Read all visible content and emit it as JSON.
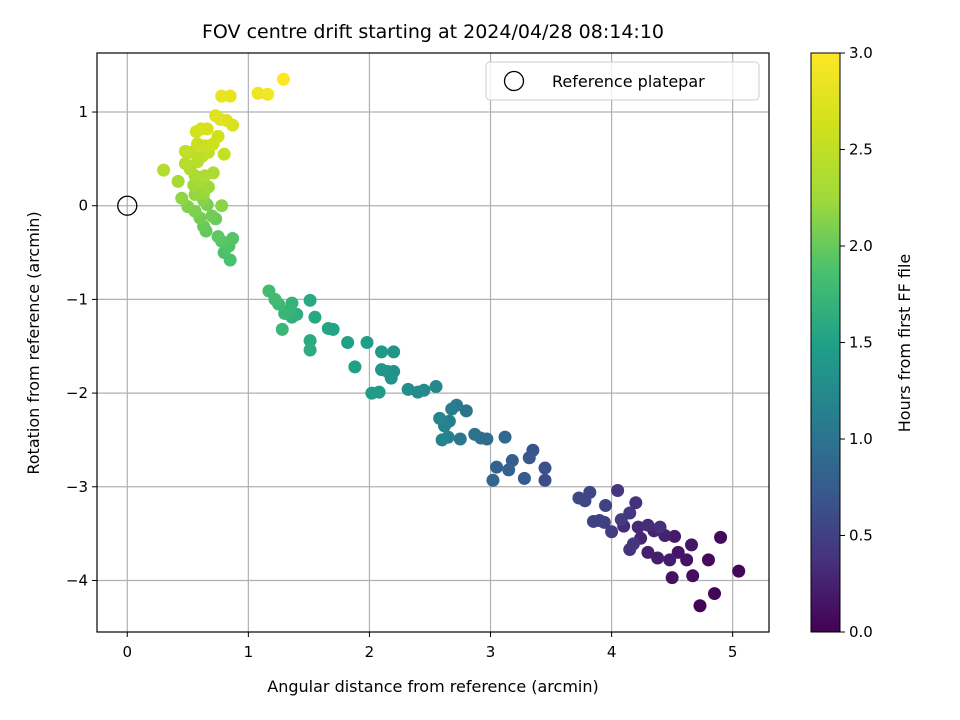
{
  "chart_data": {
    "type": "scatter",
    "title": "FOV centre drift starting at 2024/04/28 08:14:10",
    "xlabel": "Angular distance from reference (arcmin)",
    "ylabel": "Rotation from reference (arcmin)",
    "xlim": [
      -0.25,
      5.3
    ],
    "ylim": [
      -4.55,
      1.63
    ],
    "xticks": [
      0,
      1,
      2,
      3,
      4,
      5
    ],
    "yticks": [
      -4,
      -3,
      -2,
      -1,
      0,
      1
    ],
    "grid": true,
    "colormap": "viridis",
    "colorbar": {
      "label": "Hours from first FF file",
      "range": [
        0.0,
        3.0
      ],
      "ticks": [
        "0.0",
        "0.5",
        "1.0",
        "1.5",
        "2.0",
        "2.5",
        "3.0"
      ]
    },
    "legend": {
      "position": "top-right",
      "entries": [
        {
          "label": "Reference platepar",
          "marker": "open-circle"
        }
      ]
    },
    "reference_point": {
      "x": 0,
      "y": 0
    },
    "series": [
      {
        "points": [
          [
            4.73,
            -4.27,
            0.02
          ],
          [
            4.85,
            -4.14,
            0.04
          ],
          [
            5.05,
            -3.9,
            0.05
          ],
          [
            4.9,
            -3.54,
            0.07
          ],
          [
            4.8,
            -3.78,
            0.08
          ],
          [
            4.67,
            -3.95,
            0.1
          ],
          [
            4.5,
            -3.97,
            0.12
          ],
          [
            4.62,
            -3.78,
            0.14
          ],
          [
            4.55,
            -3.7,
            0.15
          ],
          [
            4.66,
            -3.62,
            0.17
          ],
          [
            4.52,
            -3.53,
            0.19
          ],
          [
            4.48,
            -3.78,
            0.21
          ],
          [
            4.38,
            -3.76,
            0.22
          ],
          [
            4.3,
            -3.7,
            0.24
          ],
          [
            4.44,
            -3.52,
            0.25
          ],
          [
            4.35,
            -3.47,
            0.27
          ],
          [
            4.24,
            -3.55,
            0.29
          ],
          [
            4.22,
            -3.43,
            0.31
          ],
          [
            4.1,
            -3.42,
            0.32
          ],
          [
            4.3,
            -3.41,
            0.34
          ],
          [
            4.4,
            -3.43,
            0.35
          ],
          [
            4.2,
            -3.17,
            0.37
          ],
          [
            4.15,
            -3.67,
            0.38
          ],
          [
            4.18,
            -3.61,
            0.4
          ],
          [
            4.05,
            -3.04,
            0.41
          ],
          [
            4.15,
            -3.28,
            0.43
          ],
          [
            4.08,
            -3.35,
            0.45
          ],
          [
            4.0,
            -3.48,
            0.47
          ],
          [
            3.94,
            -3.38,
            0.48
          ],
          [
            3.9,
            -3.36,
            0.5
          ],
          [
            3.85,
            -3.37,
            0.51
          ],
          [
            3.95,
            -3.2,
            0.53
          ],
          [
            3.82,
            -3.06,
            0.55
          ],
          [
            3.78,
            -3.15,
            0.57
          ],
          [
            3.73,
            -3.12,
            0.58
          ],
          [
            3.45,
            -2.93,
            0.62
          ],
          [
            3.45,
            -2.8,
            0.65
          ],
          [
            3.35,
            -2.61,
            0.68
          ],
          [
            3.32,
            -2.69,
            0.71
          ],
          [
            3.28,
            -2.91,
            0.74
          ],
          [
            3.18,
            -2.72,
            0.77
          ],
          [
            3.15,
            -2.82,
            0.8
          ],
          [
            3.05,
            -2.79,
            0.83
          ],
          [
            3.02,
            -2.93,
            0.86
          ],
          [
            3.12,
            -2.47,
            0.89
          ],
          [
            2.97,
            -2.49,
            0.92
          ],
          [
            2.92,
            -2.48,
            0.95
          ],
          [
            2.87,
            -2.44,
            0.98
          ],
          [
            2.8,
            -2.19,
            1.01
          ],
          [
            2.75,
            -2.49,
            1.04
          ],
          [
            2.72,
            -2.13,
            1.07
          ],
          [
            2.68,
            -2.17,
            1.1
          ],
          [
            2.66,
            -2.3,
            1.12
          ],
          [
            2.65,
            -2.47,
            1.14
          ],
          [
            2.62,
            -2.35,
            1.16
          ],
          [
            2.6,
            -2.5,
            1.18
          ],
          [
            2.58,
            -2.27,
            1.2
          ],
          [
            2.55,
            -1.93,
            1.22
          ],
          [
            2.45,
            -1.97,
            1.25
          ],
          [
            2.4,
            -1.99,
            1.27
          ],
          [
            2.32,
            -1.96,
            1.29
          ],
          [
            2.2,
            -1.77,
            1.31
          ],
          [
            2.18,
            -1.84,
            1.33
          ],
          [
            2.15,
            -1.77,
            1.35
          ],
          [
            2.2,
            -1.56,
            1.37
          ],
          [
            2.1,
            -1.75,
            1.39
          ],
          [
            2.1,
            -1.56,
            1.41
          ],
          [
            2.08,
            -1.99,
            1.43
          ],
          [
            2.02,
            -2.0,
            1.45
          ],
          [
            1.98,
            -1.46,
            1.47
          ],
          [
            1.88,
            -1.72,
            1.49
          ],
          [
            1.82,
            -1.46,
            1.51
          ],
          [
            1.7,
            -1.32,
            1.53
          ],
          [
            1.66,
            -1.31,
            1.55
          ],
          [
            1.55,
            -1.19,
            1.57
          ],
          [
            1.51,
            -1.01,
            1.59
          ],
          [
            1.51,
            -1.44,
            1.61
          ],
          [
            1.51,
            -1.54,
            1.63
          ],
          [
            1.4,
            -1.16,
            1.65
          ],
          [
            1.36,
            -1.19,
            1.67
          ],
          [
            1.36,
            -1.04,
            1.69
          ],
          [
            1.34,
            -1.11,
            1.71
          ],
          [
            1.3,
            -1.15,
            1.73
          ],
          [
            1.28,
            -1.32,
            1.75
          ],
          [
            1.25,
            -1.05,
            1.77
          ],
          [
            1.22,
            -1.0,
            1.79
          ],
          [
            1.17,
            -0.91,
            1.81
          ],
          [
            0.85,
            -0.58,
            1.86
          ],
          [
            0.8,
            -0.5,
            1.88
          ],
          [
            0.84,
            -0.43,
            1.9
          ],
          [
            0.87,
            -0.35,
            1.92
          ],
          [
            0.78,
            -0.38,
            1.94
          ],
          [
            0.75,
            -0.33,
            1.96
          ],
          [
            0.65,
            -0.27,
            1.98
          ],
          [
            0.63,
            -0.22,
            2.0
          ],
          [
            0.73,
            -0.14,
            2.02
          ],
          [
            0.7,
            -0.11,
            2.04
          ],
          [
            0.6,
            -0.13,
            2.06
          ],
          [
            0.66,
            0.01,
            2.08
          ],
          [
            0.56,
            -0.06,
            2.1
          ],
          [
            0.5,
            -0.01,
            2.12
          ],
          [
            0.63,
            0.06,
            2.14
          ],
          [
            0.78,
            0.0,
            2.16
          ],
          [
            0.45,
            0.08,
            2.18
          ],
          [
            0.56,
            0.12,
            2.2
          ],
          [
            0.63,
            0.13,
            2.22
          ],
          [
            0.67,
            0.2,
            2.24
          ],
          [
            0.55,
            0.22,
            2.26
          ],
          [
            0.6,
            0.25,
            2.28
          ],
          [
            0.42,
            0.26,
            2.3
          ],
          [
            0.56,
            0.32,
            2.32
          ],
          [
            0.71,
            0.35,
            2.34
          ],
          [
            0.64,
            0.32,
            2.36
          ],
          [
            0.52,
            0.39,
            2.38
          ],
          [
            0.3,
            0.38,
            2.4
          ],
          [
            0.48,
            0.45,
            2.42
          ],
          [
            0.58,
            0.47,
            2.44
          ],
          [
            0.62,
            0.53,
            2.46
          ],
          [
            0.53,
            0.57,
            2.48
          ],
          [
            0.48,
            0.58,
            2.5
          ],
          [
            0.67,
            0.57,
            2.52
          ],
          [
            0.8,
            0.55,
            2.54
          ],
          [
            0.64,
            0.64,
            2.56
          ],
          [
            0.58,
            0.66,
            2.58
          ],
          [
            0.71,
            0.66,
            2.6
          ],
          [
            0.75,
            0.74,
            2.62
          ],
          [
            0.57,
            0.79,
            2.64
          ],
          [
            0.61,
            0.82,
            2.66
          ],
          [
            0.66,
            0.82,
            2.68
          ],
          [
            0.87,
            0.86,
            2.7
          ],
          [
            0.82,
            0.91,
            2.72
          ],
          [
            0.73,
            0.96,
            2.74
          ],
          [
            0.77,
            0.92,
            2.76
          ],
          [
            0.85,
            1.17,
            2.8
          ],
          [
            0.78,
            1.17,
            2.82
          ],
          [
            1.08,
            1.2,
            2.88
          ],
          [
            1.16,
            1.19,
            2.92
          ],
          [
            1.29,
            1.35,
            3.0
          ]
        ]
      }
    ]
  }
}
